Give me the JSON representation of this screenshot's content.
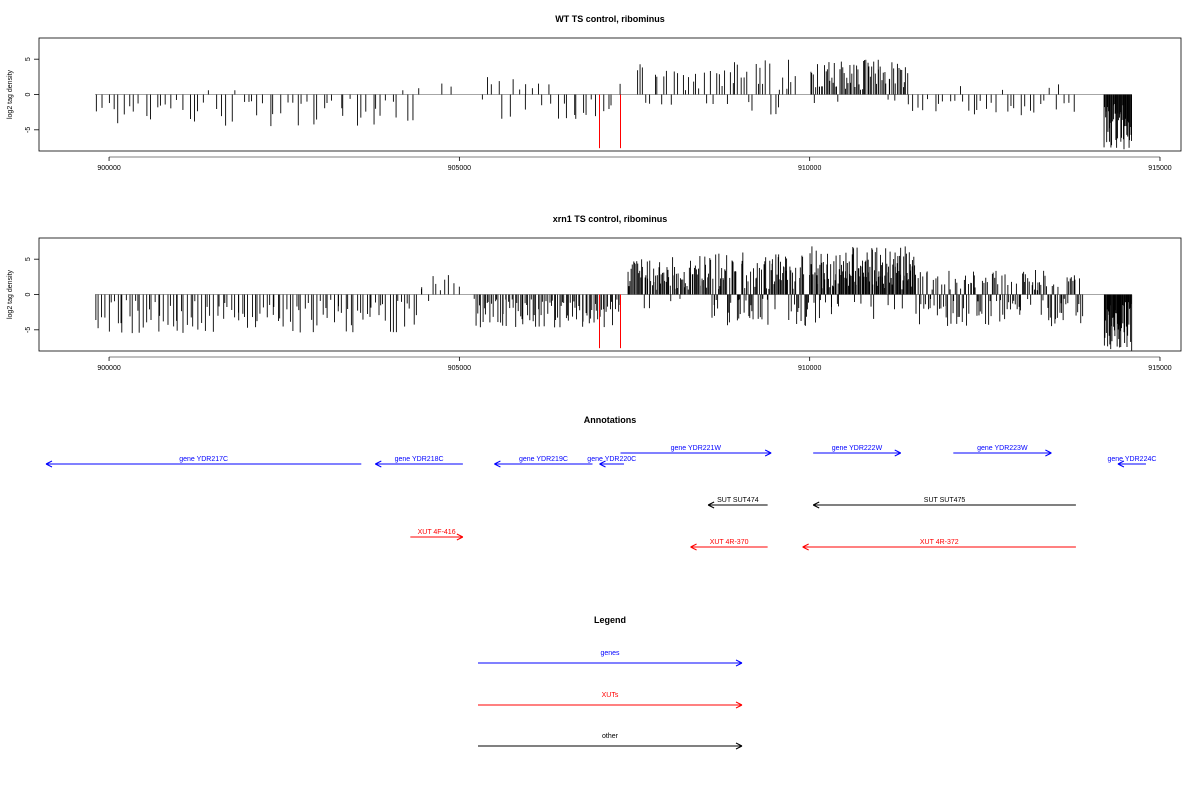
{
  "chart_data": [
    {
      "type": "bar",
      "title": "WT TS control, ribominus",
      "xlabel": "",
      "ylabel": "log2 tag density",
      "xlim": [
        899000,
        915300
      ],
      "ylim": [
        -8,
        8
      ],
      "x_ticks": [
        900000,
        905000,
        910000,
        915000
      ],
      "y_ticks": [
        -5,
        0,
        5
      ],
      "red_markers_x": [
        907000,
        907300
      ],
      "segments": [
        {
          "x_start": 899800,
          "x_end": 904400,
          "n": 60,
          "min": -4.5,
          "max": 0.6,
          "neg_bias": 0.95
        },
        {
          "x_start": 904400,
          "x_end": 905000,
          "n": 3,
          "min": 0,
          "max": 2,
          "neg_bias": 0.0
        },
        {
          "x_start": 905300,
          "x_end": 907300,
          "n": 28,
          "min": -3.5,
          "max": 2.5,
          "neg_bias": 0.85
        },
        {
          "x_start": 907500,
          "x_end": 908600,
          "n": 22,
          "min": -1.5,
          "max": 4.5,
          "neg_bias": 0.15
        },
        {
          "x_start": 908600,
          "x_end": 909800,
          "n": 30,
          "min": -3,
          "max": 5,
          "neg_bias": 0.25
        },
        {
          "x_start": 910000,
          "x_end": 911400,
          "n": 70,
          "min": -1.5,
          "max": 5,
          "neg_bias": 0.05
        },
        {
          "x_start": 911400,
          "x_end": 913800,
          "n": 35,
          "min": -3,
          "max": 1.5,
          "neg_bias": 0.8
        },
        {
          "x_start": 914200,
          "x_end": 914600,
          "n": 45,
          "min": -8,
          "max": -1,
          "neg_bias": 1.0
        }
      ]
    },
    {
      "type": "bar",
      "title": "xrn1 TS control, ribominus",
      "xlabel": "",
      "ylabel": "log2 tag density",
      "xlim": [
        899000,
        915300
      ],
      "ylim": [
        -8,
        8
      ],
      "x_ticks": [
        900000,
        905000,
        910000,
        915000
      ],
      "y_ticks": [
        -5,
        0,
        5
      ],
      "red_markers_x": [
        907000,
        907300
      ],
      "segments": [
        {
          "x_start": 899800,
          "x_end": 904400,
          "n": 110,
          "min": -5.5,
          "max": 0,
          "neg_bias": 1.0
        },
        {
          "x_start": 904400,
          "x_end": 905000,
          "n": 10,
          "min": -1,
          "max": 3,
          "neg_bias": 0.1
        },
        {
          "x_start": 905200,
          "x_end": 907300,
          "n": 90,
          "min": -5,
          "max": 0,
          "neg_bias": 1.0
        },
        {
          "x_start": 907400,
          "x_end": 908600,
          "n": 80,
          "min": -2,
          "max": 5.5,
          "neg_bias": 0.1
        },
        {
          "x_start": 908600,
          "x_end": 910000,
          "n": 110,
          "min": -4.5,
          "max": 6,
          "neg_bias": 0.3
        },
        {
          "x_start": 910000,
          "x_end": 911500,
          "n": 140,
          "min": -4,
          "max": 7,
          "neg_bias": 0.12
        },
        {
          "x_start": 911500,
          "x_end": 913900,
          "n": 140,
          "min": -4.5,
          "max": 3.5,
          "neg_bias": 0.55
        },
        {
          "x_start": 914200,
          "x_end": 914600,
          "n": 50,
          "min": -8,
          "max": -1,
          "neg_bias": 1.0
        }
      ]
    }
  ],
  "annotations": {
    "title": "Annotations",
    "items": [
      {
        "label": "gene YDR217C",
        "x_start": 903600,
        "x_end": 899100,
        "color": "#0000ff",
        "row": "gene-low"
      },
      {
        "label": "gene YDR218C",
        "x_start": 905050,
        "x_end": 903800,
        "color": "#0000ff",
        "row": "gene-low"
      },
      {
        "label": "gene YDR219C",
        "x_start": 906900,
        "x_end": 905500,
        "color": "#0000ff",
        "row": "gene-low"
      },
      {
        "label": "gene YDR220C",
        "x_start": 907350,
        "x_end": 907000,
        "color": "#0000ff",
        "row": "gene-low"
      },
      {
        "label": "gene YDR221W",
        "x_start": 907300,
        "x_end": 909450,
        "color": "#0000ff",
        "row": "gene-high"
      },
      {
        "label": "gene YDR222W",
        "x_start": 910050,
        "x_end": 911300,
        "color": "#0000ff",
        "row": "gene-high"
      },
      {
        "label": "gene YDR223W",
        "x_start": 912050,
        "x_end": 913450,
        "color": "#0000ff",
        "row": "gene-high"
      },
      {
        "label": "gene YDR224C",
        "x_start": 914800,
        "x_end": 914400,
        "color": "#0000ff",
        "row": "gene-low"
      },
      {
        "label": "SUT SUT474",
        "x_start": 909400,
        "x_end": 908550,
        "color": "#000000",
        "row": "sut"
      },
      {
        "label": "SUT SUT475",
        "x_start": 913800,
        "x_end": 910050,
        "color": "#000000",
        "row": "sut"
      },
      {
        "label": "XUT 4F-416",
        "x_start": 904300,
        "x_end": 905050,
        "color": "#ff0000",
        "row": "xut-high"
      },
      {
        "label": "XUT 4R-370",
        "x_start": 909400,
        "x_end": 908300,
        "color": "#ff0000",
        "row": "xut-low"
      },
      {
        "label": "XUT 4R-372",
        "x_start": 913800,
        "x_end": 909900,
        "color": "#ff0000",
        "row": "xut-low"
      }
    ]
  },
  "legend": {
    "title": "Legend",
    "items": [
      {
        "label": "genes",
        "color": "#0000ff"
      },
      {
        "label": "XUTs",
        "color": "#ff0000"
      },
      {
        "label": "other",
        "color": "#000000"
      }
    ]
  }
}
